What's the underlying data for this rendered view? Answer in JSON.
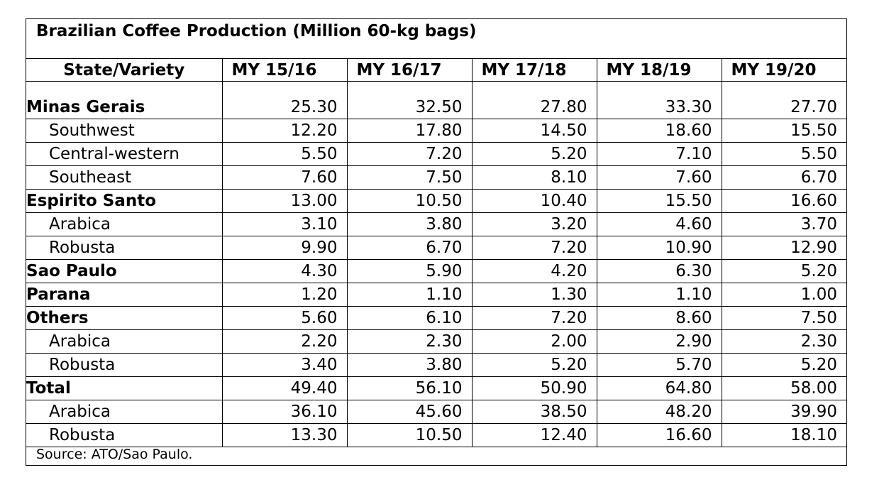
{
  "title": "Brazilian Coffee Production (Million 60-kg bags)",
  "columns": [
    "State/Variety",
    "MY 15/16",
    "MY 16/17",
    "MY 17/18",
    "MY 18/19",
    "MY 19/20"
  ],
  "rows": [
    {
      "label": "Minas Gerais",
      "bold": true,
      "sub": false,
      "values": [
        "25.30",
        "32.50",
        "27.80",
        "33.30",
        "27.70"
      ]
    },
    {
      "label": "Southwest",
      "bold": false,
      "sub": true,
      "values": [
        "12.20",
        "17.80",
        "14.50",
        "18.60",
        "15.50"
      ]
    },
    {
      "label": "Central-western",
      "bold": false,
      "sub": true,
      "values": [
        "5.50",
        "7.20",
        "5.20",
        "7.10",
        "5.50"
      ]
    },
    {
      "label": "Southeast",
      "bold": false,
      "sub": true,
      "values": [
        "7.60",
        "7.50",
        "8.10",
        "7.60",
        "6.70"
      ]
    },
    {
      "label": "Espirito Santo",
      "bold": true,
      "sub": false,
      "values": [
        "13.00",
        "10.50",
        "10.40",
        "15.50",
        "16.60"
      ]
    },
    {
      "label": "Arabica",
      "bold": false,
      "sub": true,
      "values": [
        "3.10",
        "3.80",
        "3.20",
        "4.60",
        "3.70"
      ]
    },
    {
      "label": "Robusta",
      "bold": false,
      "sub": true,
      "values": [
        "9.90",
        "6.70",
        "7.20",
        "10.90",
        "12.90"
      ]
    },
    {
      "label": "Sao Paulo",
      "bold": true,
      "sub": false,
      "values": [
        "4.30",
        "5.90",
        "4.20",
        "6.30",
        "5.20"
      ]
    },
    {
      "label": "Parana",
      "bold": true,
      "sub": false,
      "values": [
        "1.20",
        "1.10",
        "1.30",
        "1.10",
        "1.00"
      ]
    },
    {
      "label": "Others",
      "bold": true,
      "sub": false,
      "values": [
        "5.60",
        "6.10",
        "7.20",
        "8.60",
        "7.50"
      ]
    },
    {
      "label": "Arabica",
      "bold": false,
      "sub": true,
      "values": [
        "2.20",
        "2.30",
        "2.00",
        "2.90",
        "2.30"
      ]
    },
    {
      "label": "Robusta",
      "bold": false,
      "sub": true,
      "values": [
        "3.40",
        "3.80",
        "5.20",
        "5.70",
        "5.20"
      ]
    },
    {
      "label": "Total",
      "bold": true,
      "sub": false,
      "values": [
        "49.40",
        "56.10",
        "50.90",
        "64.80",
        "58.00"
      ]
    },
    {
      "label": "Arabica",
      "bold": false,
      "sub": true,
      "values": [
        "36.10",
        "45.60",
        "38.50",
        "48.20",
        "39.90"
      ]
    },
    {
      "label": "Robusta",
      "bold": false,
      "sub": true,
      "values": [
        "13.30",
        "10.50",
        "12.40",
        "16.60",
        "18.10"
      ]
    }
  ],
  "source": "Source: ATO/Sao Paulo."
}
